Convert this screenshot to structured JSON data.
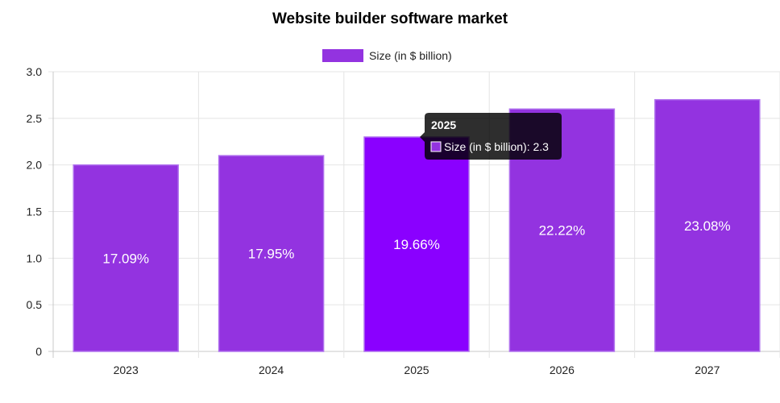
{
  "chart_data": {
    "type": "bar",
    "title": "Website builder software market",
    "categories": [
      "2023",
      "2024",
      "2025",
      "2026",
      "2027"
    ],
    "series": [
      {
        "name": "Size (in $ billion)",
        "values": [
          2.0,
          2.1,
          2.3,
          2.6,
          2.7
        ],
        "data_labels": [
          "17.09%",
          "17.95%",
          "19.66%",
          "22.22%",
          "23.08%"
        ],
        "color": "#9333e0"
      }
    ],
    "ylim": [
      0,
      3.0
    ],
    "y_ticks": [
      "0",
      "0.5",
      "1.0",
      "1.5",
      "2.0",
      "2.5",
      "3.0"
    ],
    "grid": true,
    "legend_position": "top"
  },
  "tooltip": {
    "title": "2025",
    "text": "Size (in $ billion): 2.3",
    "category_index": 2
  },
  "colors": {
    "bar": "#9333e0",
    "bar_border": "#b072ee",
    "bar_highlight": "#8a00ff",
    "tooltip_bg": "#000000"
  }
}
